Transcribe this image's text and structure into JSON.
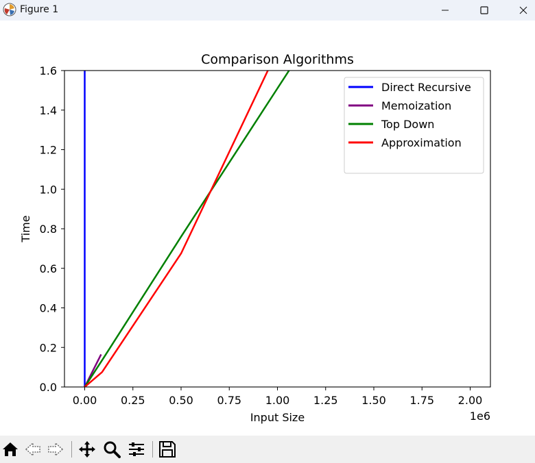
{
  "window": {
    "title": "Figure 1"
  },
  "toolbar": {
    "icons": [
      "home-icon",
      "back-icon",
      "forward-icon",
      "pan-icon",
      "zoom-icon",
      "configure-icon",
      "save-icon"
    ]
  },
  "chart_data": {
    "type": "line",
    "title": "Comparison Algorithms",
    "xlabel": "Input Size",
    "ylabel": "Time",
    "x_offset_text": "1e6",
    "xlim": [
      -0.105,
      2.105
    ],
    "ylim": [
      0.0,
      1.6
    ],
    "xticks": [
      0.0,
      0.25,
      0.5,
      0.75,
      1.0,
      1.25,
      1.5,
      1.75,
      2.0
    ],
    "xtick_labels": [
      "0.00",
      "0.25",
      "0.50",
      "0.75",
      "1.00",
      "1.25",
      "1.50",
      "1.75",
      "2.00"
    ],
    "yticks": [
      0.0,
      0.2,
      0.4,
      0.6,
      0.8,
      1.0,
      1.2,
      1.4,
      1.6
    ],
    "ytick_labels": [
      "0.0",
      "0.2",
      "0.4",
      "0.6",
      "0.8",
      "1.0",
      "1.2",
      "1.4",
      "1.6"
    ],
    "legend_position": "top-right",
    "grid": false,
    "series": [
      {
        "name": "Direct Recursive",
        "color": "#0000ff",
        "x": [
          0.0,
          0.0,
          0.0
        ],
        "y": [
          0.0,
          0.5,
          1.6
        ]
      },
      {
        "name": "Memoization",
        "color": "#800080",
        "x": [
          0.0,
          0.085
        ],
        "y": [
          0.0,
          0.165
        ]
      },
      {
        "name": "Top Down",
        "color": "#008000",
        "x": [
          0.0,
          0.1,
          0.5,
          1.0,
          1.06
        ],
        "y": [
          0.0,
          0.15,
          0.76,
          1.51,
          1.6
        ]
      },
      {
        "name": "Approximation",
        "color": "#ff0000",
        "x": [
          0.0,
          0.09,
          0.5,
          0.95
        ],
        "y": [
          0.0,
          0.075,
          0.675,
          1.6
        ]
      }
    ]
  }
}
